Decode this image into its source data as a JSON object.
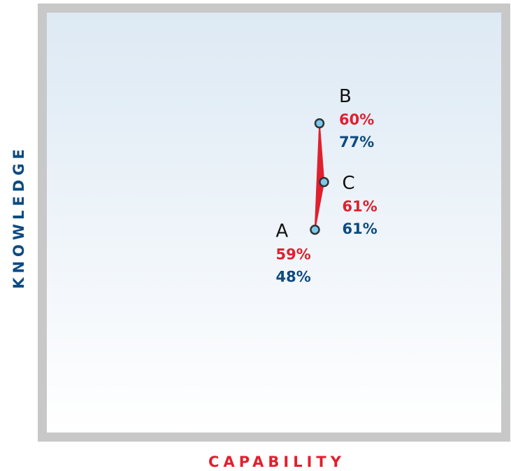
{
  "chart_data": {
    "type": "scatter",
    "xlabel": "CAPABILITY",
    "ylabel": "KNOWLEDGE",
    "xlim": [
      0,
      100
    ],
    "ylim": [
      0,
      100
    ],
    "grid": false,
    "points": [
      {
        "label": "A",
        "x": 59,
        "y": 48,
        "x_text": "59%",
        "y_text": "48%"
      },
      {
        "label": "B",
        "x": 60,
        "y": 77,
        "x_text": "60%",
        "y_text": "77%"
      },
      {
        "label": "C",
        "x": 61,
        "y": 61,
        "x_text": "61%",
        "y_text": "61%"
      }
    ],
    "path_order": [
      "A",
      "B",
      "C"
    ]
  },
  "colors": {
    "frame": "#c8c8c8",
    "bg_top": "#dde9f4",
    "bg_bottom": "#ffffff",
    "capability": "#e0202e",
    "knowledge": "#0d4a80",
    "point_fill": "#7cc9ee",
    "point_stroke": "#333333",
    "connector": "#e0202e"
  }
}
